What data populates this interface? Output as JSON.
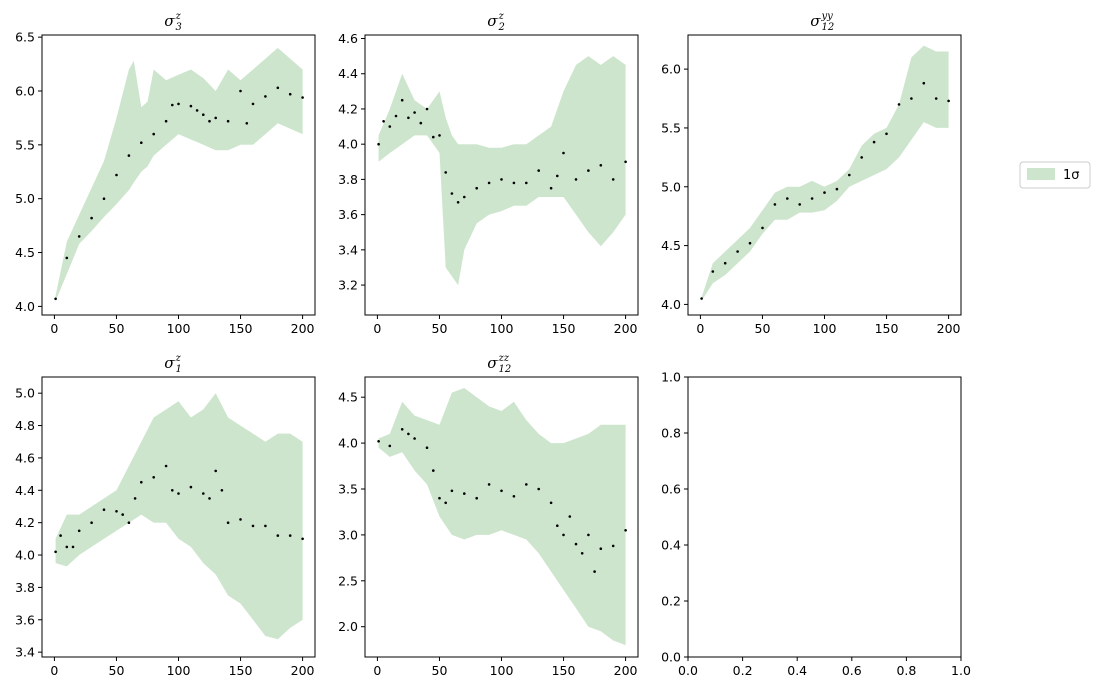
{
  "legend": {
    "label": "1σ",
    "placement": "right-outside-center"
  },
  "colors": {
    "band": "#cde5cd",
    "points": "#000000",
    "axes": "#000000",
    "legend_border": "#cccccc"
  },
  "chart_data": [
    {
      "type": "scatter",
      "title_base": "σ",
      "title_sup": "z",
      "title_sub": "3",
      "xlim": [
        -10,
        210
      ],
      "ylim": [
        3.92,
        6.52
      ],
      "xticks": [
        0,
        50,
        100,
        150,
        200
      ],
      "xtick_labels": [
        "0",
        "50",
        "100",
        "150",
        "200"
      ],
      "yticks": [
        4.0,
        4.5,
        5.0,
        5.5,
        6.0,
        6.5
      ],
      "ytick_labels": [
        "4.0",
        "4.5",
        "5.0",
        "5.5",
        "6.0",
        "6.5"
      ],
      "band": {
        "x": [
          1,
          10,
          20,
          30,
          40,
          50,
          60,
          64,
          70,
          75,
          80,
          90,
          100,
          110,
          120,
          130,
          140,
          150,
          160,
          170,
          180,
          190,
          200
        ],
        "lower": [
          4.05,
          4.3,
          4.58,
          4.7,
          4.83,
          4.95,
          5.08,
          5.15,
          5.25,
          5.3,
          5.4,
          5.5,
          5.6,
          5.55,
          5.5,
          5.45,
          5.45,
          5.5,
          5.5,
          5.6,
          5.7,
          5.65,
          5.6
        ],
        "upper": [
          4.1,
          4.6,
          4.85,
          5.1,
          5.35,
          5.75,
          6.2,
          6.28,
          5.85,
          5.9,
          6.2,
          6.1,
          6.15,
          6.2,
          6.12,
          6.0,
          6.2,
          6.1,
          6.2,
          6.3,
          6.4,
          6.3,
          6.2
        ]
      },
      "points": {
        "x": [
          1,
          10,
          20,
          30,
          40,
          50,
          60,
          70,
          80,
          90,
          95,
          100,
          110,
          115,
          120,
          125,
          130,
          140,
          150,
          155,
          160,
          170,
          180,
          190,
          200
        ],
        "y": [
          4.07,
          4.45,
          4.65,
          4.82,
          5.0,
          5.22,
          5.4,
          5.52,
          5.6,
          5.72,
          5.87,
          5.88,
          5.86,
          5.82,
          5.78,
          5.72,
          5.75,
          5.72,
          6.0,
          5.7,
          5.88,
          5.95,
          6.03,
          5.97,
          5.94
        ]
      }
    },
    {
      "type": "scatter",
      "title_base": "σ",
      "title_sup": "z",
      "title_sub": "2",
      "xlim": [
        -10,
        210
      ],
      "ylim": [
        3.03,
        4.62
      ],
      "xticks": [
        0,
        50,
        100,
        150,
        200
      ],
      "xtick_labels": [
        "0",
        "50",
        "100",
        "150",
        "200"
      ],
      "yticks": [
        3.2,
        3.4,
        3.6,
        3.8,
        4.0,
        4.2,
        4.4,
        4.6
      ],
      "ytick_labels": [
        "3.2",
        "3.4",
        "3.6",
        "3.8",
        "4.0",
        "4.2",
        "4.4",
        "4.6"
      ],
      "band": {
        "x": [
          1,
          10,
          20,
          30,
          40,
          50,
          55,
          60,
          65,
          70,
          80,
          90,
          100,
          110,
          120,
          130,
          140,
          150,
          160,
          170,
          180,
          190,
          200
        ],
        "lower": [
          3.9,
          3.95,
          4.0,
          4.05,
          4.05,
          3.95,
          3.3,
          3.25,
          3.2,
          3.4,
          3.55,
          3.6,
          3.62,
          3.65,
          3.65,
          3.7,
          3.7,
          3.7,
          3.6,
          3.5,
          3.42,
          3.5,
          3.6
        ],
        "upper": [
          4.05,
          4.2,
          4.4,
          4.25,
          4.2,
          4.3,
          4.15,
          4.05,
          4.0,
          4.0,
          4.0,
          3.98,
          3.98,
          4.0,
          4.0,
          4.05,
          4.1,
          4.3,
          4.45,
          4.5,
          4.45,
          4.5,
          4.45
        ]
      },
      "points": {
        "x": [
          1,
          5,
          10,
          15,
          20,
          25,
          30,
          35,
          40,
          45,
          50,
          55,
          60,
          65,
          70,
          80,
          90,
          100,
          110,
          120,
          130,
          140,
          145,
          150,
          160,
          170,
          180,
          190,
          200
        ],
        "y": [
          4.0,
          4.13,
          4.1,
          4.16,
          4.25,
          4.15,
          4.18,
          4.12,
          4.2,
          4.04,
          4.05,
          3.84,
          3.72,
          3.67,
          3.7,
          3.75,
          3.78,
          3.8,
          3.78,
          3.78,
          3.85,
          3.75,
          3.82,
          3.95,
          3.8,
          3.85,
          3.88,
          3.8,
          3.9
        ]
      }
    },
    {
      "type": "scatter",
      "title_base": "σ",
      "title_sup": "yy",
      "title_sub": "12",
      "xlim": [
        -10,
        210
      ],
      "ylim": [
        3.91,
        6.29
      ],
      "xticks": [
        0,
        50,
        100,
        150,
        200
      ],
      "xtick_labels": [
        "0",
        "50",
        "100",
        "150",
        "200"
      ],
      "yticks": [
        4.0,
        4.5,
        5.0,
        5.5,
        6.0
      ],
      "ytick_labels": [
        "4.0",
        "4.5",
        "5.0",
        "5.5",
        "6.0"
      ],
      "band": {
        "x": [
          1,
          10,
          20,
          30,
          40,
          50,
          60,
          70,
          80,
          90,
          100,
          110,
          120,
          130,
          140,
          150,
          160,
          170,
          180,
          190,
          200
        ],
        "lower": [
          4.03,
          4.18,
          4.25,
          4.35,
          4.45,
          4.6,
          4.72,
          4.72,
          4.78,
          4.78,
          4.8,
          4.88,
          5.0,
          5.05,
          5.1,
          5.15,
          5.25,
          5.4,
          5.55,
          5.5,
          5.5
        ],
        "upper": [
          4.06,
          4.35,
          4.45,
          4.55,
          4.65,
          4.8,
          4.95,
          5.0,
          5.0,
          5.05,
          5.0,
          5.05,
          5.15,
          5.35,
          5.45,
          5.5,
          5.7,
          6.1,
          6.2,
          6.15,
          6.15
        ]
      },
      "points": {
        "x": [
          1,
          10,
          20,
          30,
          40,
          50,
          60,
          70,
          80,
          90,
          100,
          110,
          120,
          130,
          140,
          150,
          160,
          170,
          180,
          190,
          200
        ],
        "y": [
          4.05,
          4.28,
          4.35,
          4.45,
          4.52,
          4.65,
          4.85,
          4.9,
          4.85,
          4.9,
          4.95,
          4.98,
          5.1,
          5.25,
          5.38,
          5.45,
          5.7,
          5.75,
          5.88,
          5.75,
          5.73
        ]
      }
    },
    {
      "type": "scatter",
      "title_base": "σ",
      "title_sup": "z",
      "title_sub": "1",
      "xlim": [
        -10,
        210
      ],
      "ylim": [
        3.37,
        5.1
      ],
      "xticks": [
        0,
        50,
        100,
        150,
        200
      ],
      "xtick_labels": [
        "0",
        "50",
        "100",
        "150",
        "200"
      ],
      "yticks": [
        3.4,
        3.6,
        3.8,
        4.0,
        4.2,
        4.4,
        4.6,
        4.8,
        5.0
      ],
      "ytick_labels": [
        "3.4",
        "3.6",
        "3.8",
        "4.0",
        "4.2",
        "4.4",
        "4.6",
        "4.8",
        "5.0"
      ],
      "band": {
        "x": [
          1,
          10,
          20,
          30,
          40,
          50,
          60,
          70,
          80,
          90,
          100,
          110,
          120,
          130,
          140,
          150,
          160,
          170,
          180,
          190,
          200
        ],
        "lower": [
          3.95,
          3.93,
          4.0,
          4.05,
          4.1,
          4.15,
          4.2,
          4.25,
          4.2,
          4.2,
          4.1,
          4.05,
          3.95,
          3.88,
          3.75,
          3.7,
          3.6,
          3.5,
          3.48,
          3.55,
          3.6
        ],
        "upper": [
          4.1,
          4.25,
          4.25,
          4.3,
          4.35,
          4.4,
          4.55,
          4.7,
          4.85,
          4.9,
          4.95,
          4.85,
          4.9,
          5.0,
          4.85,
          4.8,
          4.75,
          4.7,
          4.75,
          4.75,
          4.7
        ]
      },
      "points": {
        "x": [
          1,
          5,
          10,
          15,
          20,
          30,
          40,
          50,
          55,
          60,
          65,
          70,
          80,
          90,
          95,
          100,
          110,
          120,
          125,
          130,
          135,
          140,
          150,
          160,
          170,
          180,
          190,
          200
        ],
        "y": [
          4.02,
          4.12,
          4.05,
          4.05,
          4.15,
          4.2,
          4.28,
          4.27,
          4.25,
          4.2,
          4.35,
          4.45,
          4.48,
          4.55,
          4.4,
          4.38,
          4.42,
          4.38,
          4.35,
          4.52,
          4.4,
          4.2,
          4.22,
          4.18,
          4.18,
          4.12,
          4.12,
          4.1
        ]
      }
    },
    {
      "type": "scatter",
      "title_base": "σ",
      "title_sup": "zz",
      "title_sub": "12",
      "xlim": [
        -10,
        210
      ],
      "ylim": [
        1.67,
        4.72
      ],
      "xticks": [
        0,
        50,
        100,
        150,
        200
      ],
      "xtick_labels": [
        "0",
        "50",
        "100",
        "150",
        "200"
      ],
      "yticks": [
        2.0,
        2.5,
        3.0,
        3.5,
        4.0,
        4.5
      ],
      "ytick_labels": [
        "2.0",
        "2.5",
        "3.0",
        "3.5",
        "4.0",
        "4.5"
      ],
      "band": {
        "x": [
          1,
          10,
          20,
          30,
          40,
          50,
          60,
          70,
          80,
          90,
          100,
          110,
          120,
          130,
          140,
          150,
          160,
          170,
          180,
          190,
          200
        ],
        "lower": [
          3.95,
          3.85,
          3.9,
          3.7,
          3.55,
          3.2,
          3.0,
          2.95,
          3.0,
          3.0,
          3.05,
          3.0,
          2.95,
          2.8,
          2.6,
          2.4,
          2.2,
          2.0,
          1.95,
          1.85,
          1.8
        ],
        "upper": [
          4.05,
          4.1,
          4.45,
          4.3,
          4.25,
          4.2,
          4.55,
          4.6,
          4.5,
          4.4,
          4.35,
          4.45,
          4.25,
          4.1,
          4.0,
          4.0,
          4.05,
          4.1,
          4.2,
          4.2,
          4.2
        ]
      },
      "points": {
        "x": [
          1,
          10,
          20,
          25,
          30,
          40,
          45,
          50,
          55,
          60,
          70,
          80,
          90,
          100,
          110,
          120,
          130,
          140,
          145,
          150,
          155,
          160,
          165,
          170,
          175,
          180,
          190,
          200
        ],
        "y": [
          4.02,
          3.97,
          4.15,
          4.1,
          4.05,
          3.95,
          3.7,
          3.4,
          3.35,
          3.48,
          3.45,
          3.4,
          3.55,
          3.48,
          3.42,
          3.55,
          3.5,
          3.35,
          3.1,
          3.0,
          3.2,
          2.9,
          2.8,
          3.0,
          2.6,
          2.85,
          2.88,
          3.05
        ]
      }
    },
    {
      "type": "scatter",
      "empty": true,
      "xlim": [
        0,
        1
      ],
      "ylim": [
        0,
        1
      ],
      "xticks": [
        0,
        0.2,
        0.4,
        0.6,
        0.8,
        1.0
      ],
      "xtick_labels": [
        "0.0",
        "0.2",
        "0.4",
        "0.6",
        "0.8",
        "1.0"
      ],
      "yticks": [
        0,
        0.2,
        0.4,
        0.6,
        0.8,
        1.0
      ],
      "ytick_labels": [
        "0.0",
        "0.2",
        "0.4",
        "0.6",
        "0.8",
        "1.0"
      ]
    }
  ]
}
